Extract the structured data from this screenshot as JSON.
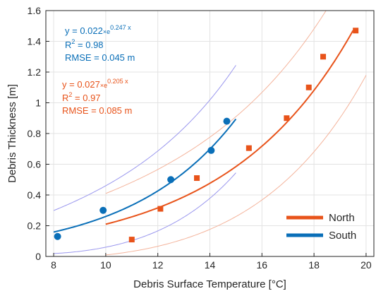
{
  "chart_data": {
    "type": "scatter",
    "xlabel": "Debris Surface Temperature [°C]",
    "ylabel": "Debris Thickness [m]",
    "xlim": [
      7.7,
      20.3
    ],
    "ylim": [
      0,
      1.6
    ],
    "xticks": [
      "8",
      "10",
      "12",
      "14",
      "16",
      "18",
      "20"
    ],
    "yticks": [
      "0",
      "0.2",
      "0.4",
      "0.6",
      "0.8",
      "1",
      "1.2",
      "1.4",
      "1.6"
    ],
    "grid": true,
    "legend_position": "bottom-right",
    "series": [
      {
        "name": "North",
        "color": "#e8531a",
        "band_color": "#f4b49c",
        "marker": "square",
        "x": [
          11.0,
          12.1,
          13.5,
          15.5,
          16.95,
          17.8,
          18.35,
          19.6
        ],
        "y": [
          0.11,
          0.31,
          0.51,
          0.705,
          0.9,
          1.1,
          1.3,
          1.47
        ],
        "fit": {
          "a": 0.027,
          "b": 0.205,
          "x_range": [
            10,
            19.5
          ],
          "band_x_range": [
            10,
            20
          ]
        },
        "fit_label": {
          "equation_prefix": "y = 0.027",
          "equation_mid": "×e",
          "exponent": "0.205 x",
          "r2_prefix": "R",
          "r2_sup": "2",
          "r2_suffix": " = 0.97",
          "rmse": "RMSE = 0.085 m"
        }
      },
      {
        "name": "South",
        "color": "#0a6fb8",
        "band_color": "#9a97ee",
        "marker": "circle",
        "x": [
          8.15,
          9.9,
          12.5,
          14.05,
          14.65
        ],
        "y": [
          0.13,
          0.3,
          0.5,
          0.69,
          0.88
        ],
        "fit": {
          "a": 0.022,
          "b": 0.247,
          "x_range": [
            8,
            15
          ],
          "band_x_range": [
            8,
            15
          ]
        },
        "fit_label": {
          "equation_prefix": "y = 0.022",
          "equation_mid": "×e",
          "exponent": "0.247 x",
          "r2_prefix": "R",
          "r2_sup": "2",
          "r2_suffix": " = 0.98",
          "rmse": "RMSE = 0.045 m"
        }
      }
    ]
  }
}
